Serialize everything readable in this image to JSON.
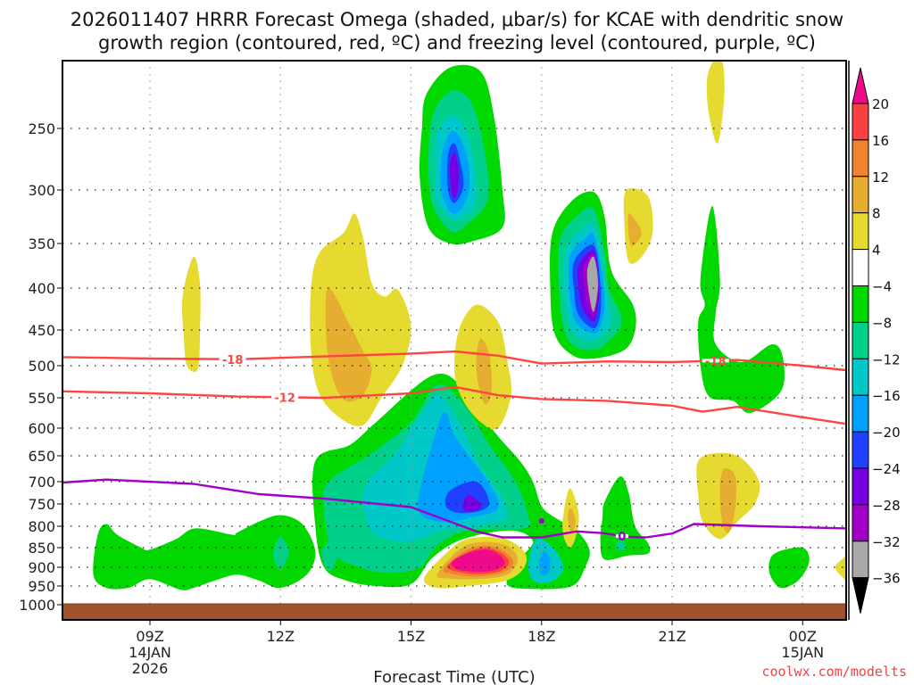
{
  "chart_data": {
    "type": "heatmap",
    "title_line1": "2026011407 HRRR Forecast Omega (shaded, μbar/s) for KCAE with dendritic snow",
    "title_line2": "growth region (contoured, red, ºC) and freezing level (contoured, purple, ºC)",
    "xlabel": "Forecast Time (UTC)",
    "ylabel": "",
    "credit": "coolwx.com/modelts",
    "x_range_hours_from_09Z": [
      -2.0,
      16.0
    ],
    "x_ticks": [
      {
        "hour": 0,
        "lines": [
          "09Z",
          "14JAN",
          "2026"
        ]
      },
      {
        "hour": 3,
        "lines": [
          "12Z"
        ]
      },
      {
        "hour": 6,
        "lines": [
          "15Z"
        ]
      },
      {
        "hour": 9,
        "lines": [
          "18Z"
        ]
      },
      {
        "hour": 12,
        "lines": [
          "21Z"
        ]
      },
      {
        "hour": 15,
        "lines": [
          "00Z",
          "15JAN"
        ]
      }
    ],
    "y_axis_pressure_hPa": [
      250,
      300,
      350,
      400,
      450,
      500,
      550,
      600,
      650,
      700,
      750,
      800,
      850,
      900,
      950,
      1000
    ],
    "y_range_hPa": [
      200,
      1000
    ],
    "grid": true,
    "colorbar": {
      "placement": "right",
      "levels": [
        20,
        16,
        12,
        8,
        4,
        -4,
        -8,
        -12,
        -16,
        -20,
        -24,
        -28,
        -32,
        -36
      ],
      "bins": [
        {
          "range": ">20",
          "color": "#ee0a8a"
        },
        {
          "range": "16 to 20",
          "color": "#fb4040"
        },
        {
          "range": "12 to 16",
          "color": "#ee8430"
        },
        {
          "range": "8 to 12",
          "color": "#e6ad30"
        },
        {
          "range": "4 to 8",
          "color": "#e6da30"
        },
        {
          "range": "-4 to 4",
          "color": "#ffffff"
        },
        {
          "range": "-8 to -4",
          "color": "#00d800"
        },
        {
          "range": "-12 to -8",
          "color": "#00d08a"
        },
        {
          "range": "-16 to -12",
          "color": "#00c8c8"
        },
        {
          "range": "-20 to -16",
          "color": "#00a0ff"
        },
        {
          "range": "-24 to -20",
          "color": "#2040ff"
        },
        {
          "range": "-28 to -24",
          "color": "#7800e0"
        },
        {
          "range": "-32 to -28",
          "color": "#a000c8"
        },
        {
          "range": "-36 to -32",
          "color": "#a8a8a8"
        },
        {
          "range": "<-36",
          "color": "#000000"
        }
      ]
    },
    "ground_color": "#a0522d",
    "omega_features": [
      {
        "name": "upper-ascent-core-16Z",
        "center_hour": 7.0,
        "center_hPa": 290,
        "min_value": -28,
        "levels": [
          -4,
          -8,
          -12,
          -16,
          -20,
          -24
        ],
        "width_hours": 2.1,
        "top_hPa": 205,
        "bottom_hPa": 345
      },
      {
        "name": "strong-ascent-core-19Z",
        "center_hour": 10.15,
        "center_hPa": 385,
        "min_value": -36,
        "levels": [
          -4,
          -8,
          -12,
          -16,
          -20,
          -24,
          -28,
          -32
        ],
        "width_hours": 2.3,
        "top_hPa": 310,
        "bottom_hPa": 480
      },
      {
        "name": "lower-ascent-complex-16Z",
        "center_hour": 7.2,
        "center_hPa": 750,
        "min_value": -28,
        "levels": [
          -4,
          -8,
          -12,
          -16,
          -20,
          -24
        ],
        "top_hPa": 515,
        "bottom_hPa": 955
      },
      {
        "name": "strong-descent-core-17Z",
        "center_hour": 7.7,
        "center_hPa": 870,
        "max_value": 24,
        "levels": [
          4,
          8,
          12,
          16,
          20
        ]
      },
      {
        "name": "descent-lobe-13Z",
        "center_hour": 4.6,
        "center_hPa": 430,
        "max_value": 12,
        "levels": [
          4,
          8
        ]
      },
      {
        "name": "descent-lobe-16Z",
        "center_hour": 7.75,
        "center_hPa": 480,
        "max_value": 12,
        "levels": [
          4,
          8
        ]
      },
      {
        "name": "descent-lobe-20Z",
        "center_hour": 11.15,
        "center_hPa": 330,
        "max_value": 12,
        "levels": [
          4,
          8
        ]
      },
      {
        "name": "descent-lobe-22Z-low",
        "center_hour": 13.4,
        "center_hPa": 730,
        "max_value": 12,
        "levels": [
          4,
          8
        ]
      },
      {
        "name": "descent-lobe-19Z-low",
        "center_hour": 9.7,
        "center_hPa": 770,
        "max_value": 12,
        "levels": [
          4,
          8
        ]
      },
      {
        "name": "descent-lobe-10Z",
        "center_hour": 1.0,
        "center_hPa": 410,
        "max_value": 8,
        "levels": [
          4
        ]
      },
      {
        "name": "descent-lobe-22Z-top",
        "center_hour": 13.0,
        "center_hPa": 215,
        "max_value": 8,
        "levels": [
          4
        ]
      },
      {
        "name": "low-level-ascent-band-08-12Z",
        "center_hour": 1.8,
        "center_hPa": 870,
        "min_value": -12,
        "levels": [
          -4,
          -8
        ]
      },
      {
        "name": "ascent-plume-20Z",
        "center_hour": 10.9,
        "center_hPa": 740,
        "min_value": -12,
        "levels": [
          -4,
          -8
        ]
      },
      {
        "name": "ascent-plume-22Z",
        "center_hour": 13.0,
        "center_hPa": 450,
        "min_value": -8,
        "levels": [
          -4
        ]
      },
      {
        "name": "ascent-blob-23Z-low",
        "center_hour": 14.3,
        "center_hPa": 900,
        "min_value": -8,
        "levels": [
          -4
        ]
      }
    ],
    "contours": {
      "dgz_minus18": {
        "label": "-18",
        "color": "#ff4444",
        "hours": [
          -2.0,
          0.0,
          2.0,
          4.0,
          6.0,
          7.0,
          8.0,
          9.0,
          10.5,
          12.0,
          13.5,
          15.0,
          16.0
        ],
        "hPa": [
          488,
          490,
          491,
          487,
          483,
          480,
          486,
          497,
          494,
          495,
          492,
          500,
          507
        ]
      },
      "dgz_minus12": {
        "label": "-12",
        "color": "#ff4444",
        "hours": [
          -2.0,
          0.0,
          2.0,
          4.0,
          6.0,
          7.0,
          8.0,
          9.0,
          10.5,
          12.0,
          12.7,
          13.5,
          15.0,
          16.0
        ],
        "hPa": [
          540,
          543,
          548,
          550,
          543,
          533,
          546,
          552,
          555,
          563,
          573,
          565,
          582,
          593
        ]
      },
      "freezing_level_0": {
        "label": "0",
        "color": "#a000c8",
        "hours": [
          -2.0,
          -1.0,
          1.0,
          2.5,
          4.0,
          6.0,
          7.5,
          8.1,
          9.0,
          9.8,
          10.4,
          11.0,
          11.4,
          12.0,
          12.5,
          14.0,
          16.0
        ],
        "hPa": [
          702,
          696,
          705,
          728,
          738,
          757,
          812,
          826,
          826,
          812,
          816,
          825,
          826,
          817,
          795,
          800,
          805
        ]
      }
    }
  }
}
